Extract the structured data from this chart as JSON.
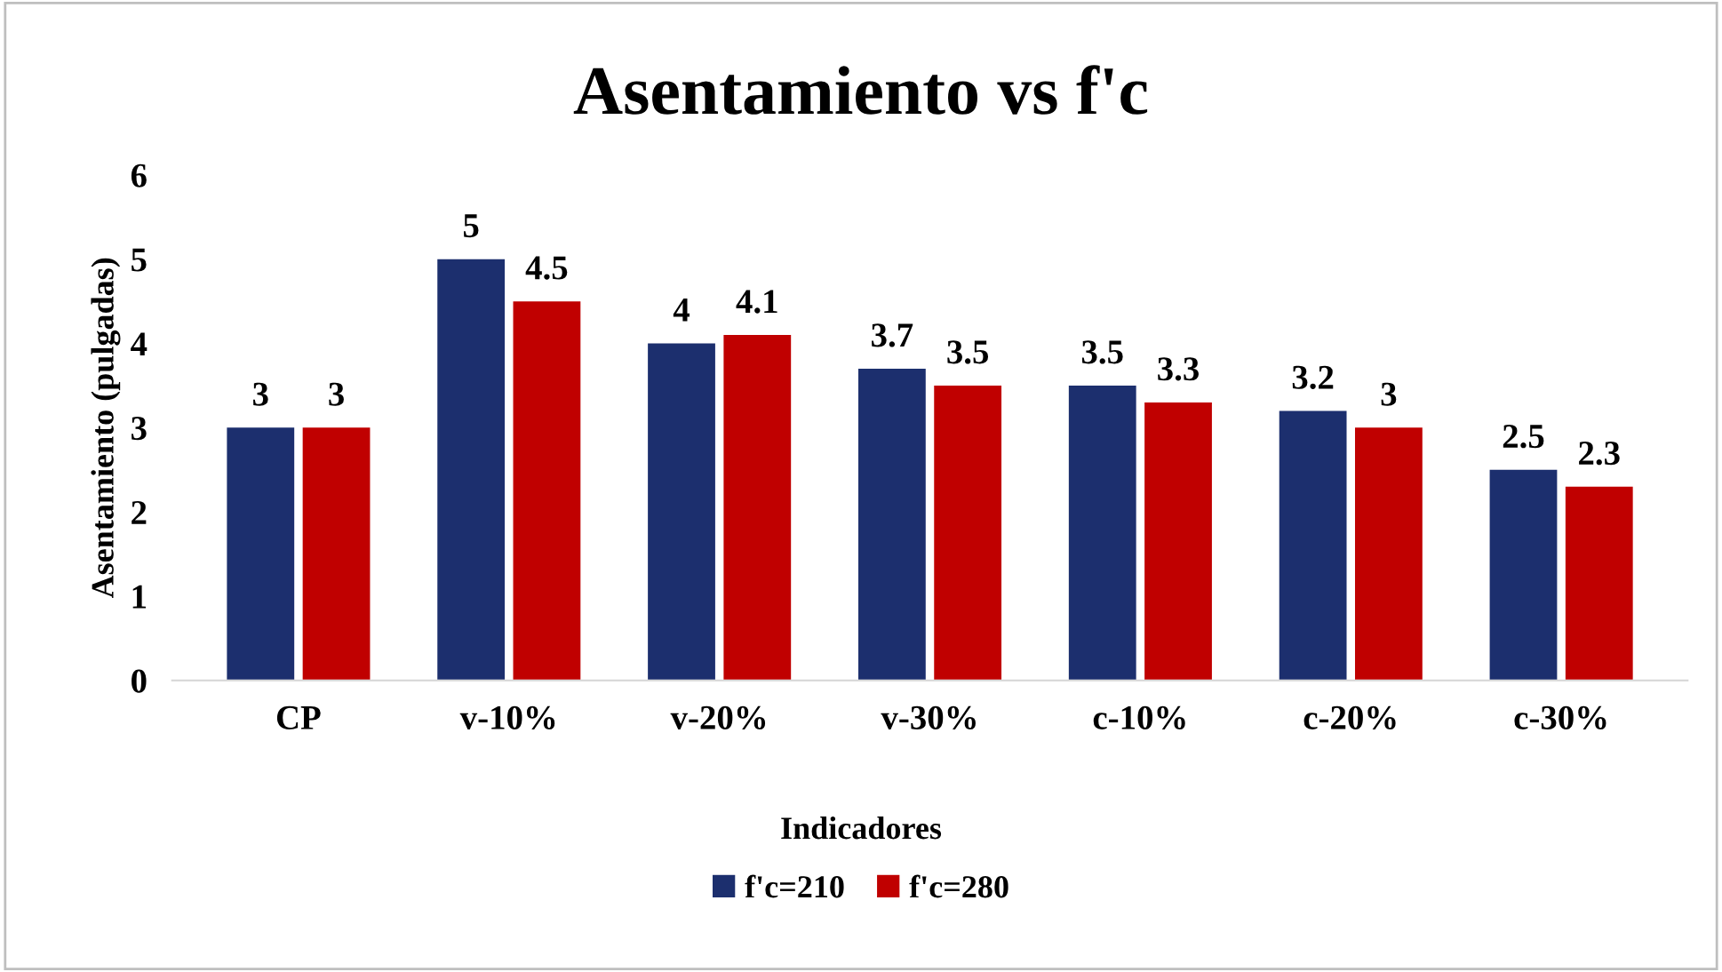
{
  "chart_data": {
    "type": "bar",
    "title": "Asentamiento vs f'c",
    "xlabel": "Indicadores",
    "ylabel": "Asentamiento (pulgadas)",
    "categories": [
      "CP",
      "v-10%",
      "v-20%",
      "v-30%",
      "c-10%",
      "c-20%",
      "c-30%"
    ],
    "series": [
      {
        "name": "f'c=210",
        "color": "#1c2f6e",
        "values": [
          3,
          5,
          4,
          3.7,
          3.5,
          3.2,
          2.5
        ]
      },
      {
        "name": "f'c=280",
        "color": "#c00000",
        "values": [
          3,
          4.5,
          4.1,
          3.5,
          3.3,
          3,
          2.3
        ]
      }
    ],
    "ylim": [
      0,
      6
    ],
    "yticks": [
      0,
      1,
      2,
      3,
      4,
      5,
      6
    ],
    "grid": false,
    "legend": "bottom",
    "data_labels": true
  }
}
